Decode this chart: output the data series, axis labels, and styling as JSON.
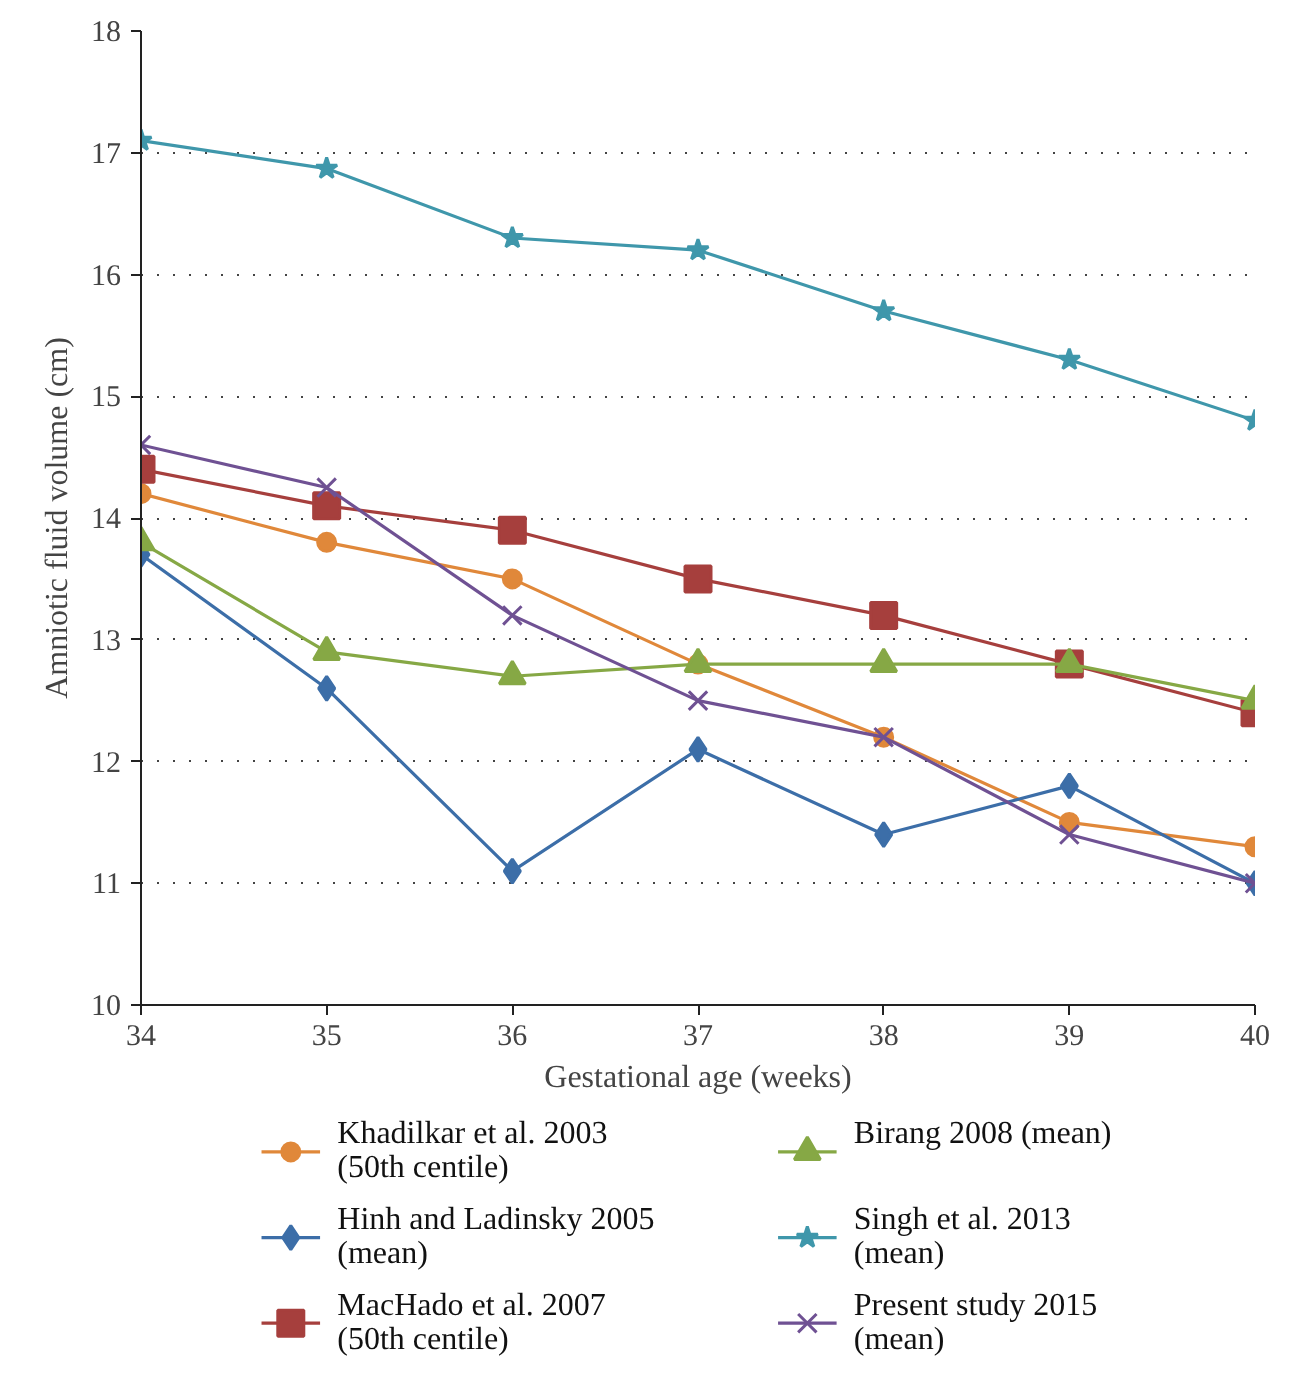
{
  "chart_data": {
    "type": "line",
    "xlabel": "Gestational age (weeks)",
    "ylabel": "Amniotic fluid volume (cm)",
    "x": [
      34,
      35,
      36,
      37,
      38,
      39,
      40
    ],
    "xlim": [
      34,
      40
    ],
    "xticks": [
      34,
      35,
      36,
      37,
      38,
      39,
      40
    ],
    "ylim": [
      10,
      18
    ],
    "yticks": [
      10,
      11,
      12,
      13,
      14,
      15,
      16,
      17,
      18
    ],
    "grid": "y",
    "legend": "bottom",
    "series": [
      {
        "name": "Khadilkar et al. 2003 (50th centile)",
        "color": "#e0883a",
        "marker": "circle",
        "values": [
          14.2,
          13.8,
          13.5,
          12.8,
          12.2,
          11.5,
          11.3
        ]
      },
      {
        "name": "Hinh and Ladinsky 2005 (mean)",
        "color": "#3c6ea8",
        "marker": "diamond",
        "values": [
          13.7,
          12.6,
          11.1,
          12.1,
          11.4,
          11.8,
          11.0
        ]
      },
      {
        "name": "MacHado et al. 2007 (50th centile)",
        "color": "#a63f3d",
        "marker": "square",
        "values": [
          14.4,
          14.1,
          13.9,
          13.5,
          13.2,
          12.8,
          12.4
        ]
      },
      {
        "name": "Birang 2008 (mean)",
        "color": "#86a845",
        "marker": "triangle",
        "values": [
          13.8,
          12.9,
          12.7,
          12.8,
          12.8,
          12.8,
          12.5
        ]
      },
      {
        "name": "Singh et al. 2013 (mean)",
        "color": "#3f97ab",
        "marker": "star",
        "values": [
          17.1,
          16.87,
          16.3,
          16.2,
          15.7,
          15.3,
          14.8
        ]
      },
      {
        "name": "Present study 2015 (mean)",
        "color": "#6f5193",
        "marker": "cross",
        "values": [
          14.6,
          14.25,
          13.2,
          12.5,
          12.2,
          11.4,
          11.0
        ]
      }
    ]
  }
}
